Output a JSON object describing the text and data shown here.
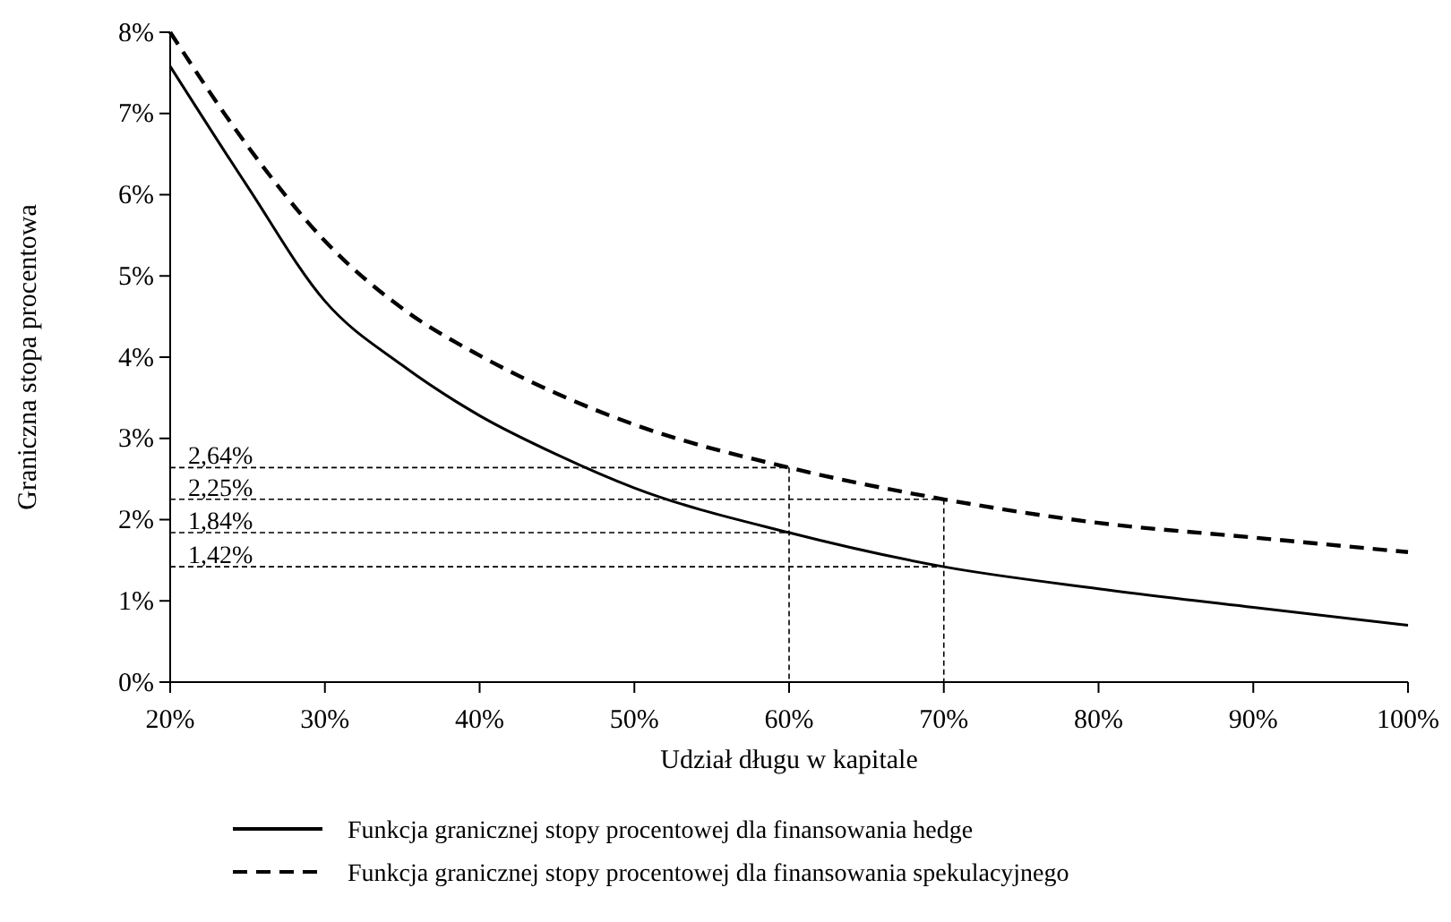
{
  "chart_data": {
    "type": "line",
    "xlabel": "Udział długu w kapitale",
    "ylabel": "Graniczna stopa procentowa",
    "xlim": [
      20,
      100
    ],
    "xticks": [
      {
        "value": 20,
        "label": "20%"
      },
      {
        "value": 30,
        "label": "30%"
      },
      {
        "value": 40,
        "label": "40%"
      },
      {
        "value": 50,
        "label": "50%"
      },
      {
        "value": 60,
        "label": "60%"
      },
      {
        "value": 70,
        "label": "70%"
      },
      {
        "value": 80,
        "label": "80%"
      },
      {
        "value": 90,
        "label": "90%"
      },
      {
        "value": 100,
        "label": "100%"
      }
    ],
    "ylim": [
      0,
      8
    ],
    "yticks": [
      {
        "value": 0,
        "label": "0%"
      },
      {
        "value": 1,
        "label": "1%"
      },
      {
        "value": 2,
        "label": "2%"
      },
      {
        "value": 3,
        "label": "3%"
      },
      {
        "value": 4,
        "label": "4%"
      },
      {
        "value": 5,
        "label": "5%"
      },
      {
        "value": 6,
        "label": "6%"
      },
      {
        "value": 7,
        "label": "7%"
      },
      {
        "value": 8,
        "label": "8%"
      }
    ],
    "x": [
      20,
      25,
      30,
      35,
      40,
      45,
      50,
      60,
      70,
      80,
      90,
      100
    ],
    "series": [
      {
        "name": "Funkcja granicznej stopy procentowej dla finansowania hedge",
        "color": "#000000",
        "line_style": "solid",
        "values": [
          7.58,
          6.1,
          4.69,
          3.9,
          3.28,
          2.8,
          2.39,
          1.84,
          1.42,
          1.15,
          0.92,
          0.7
        ]
      },
      {
        "name": "Funkcja granicznej stopy procentowej dla finansowania spekulacyjnego",
        "color": "#000000",
        "line_style": "dashed",
        "values": [
          8.0,
          6.6,
          5.43,
          4.6,
          4.02,
          3.55,
          3.17,
          2.64,
          2.25,
          1.96,
          1.78,
          1.6
        ]
      }
    ],
    "ref_lines": [
      {
        "axis": "y",
        "value": 2.64,
        "label": "2,64%",
        "line_style": "dashed"
      },
      {
        "axis": "y",
        "value": 2.25,
        "label": "2,25%",
        "line_style": "dashed"
      },
      {
        "axis": "y",
        "value": 1.84,
        "label": "1,84%",
        "line_style": "dashed"
      },
      {
        "axis": "y",
        "value": 1.42,
        "label": "1,42%",
        "line_style": "dashed"
      },
      {
        "axis": "x",
        "value": 60,
        "line_style": "dashed"
      },
      {
        "axis": "x",
        "value": 70,
        "line_style": "dashed"
      }
    ],
    "grid": false,
    "legend": "bottom",
    "marker": "none"
  }
}
